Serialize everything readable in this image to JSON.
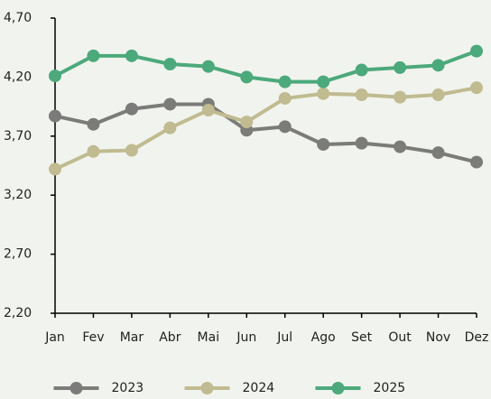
{
  "chart_data": {
    "type": "line",
    "categories": [
      "Jan",
      "Fev",
      "Mar",
      "Abr",
      "Mai",
      "Jun",
      "Jul",
      "Ago",
      "Set",
      "Out",
      "Nov",
      "Dez"
    ],
    "series": [
      {
        "name": "2023",
        "color": "#7b7b79",
        "values": [
          3.87,
          3.8,
          3.93,
          3.97,
          3.97,
          3.75,
          3.78,
          3.63,
          3.64,
          3.61,
          3.56,
          3.48
        ]
      },
      {
        "name": "2024",
        "color": "#c0bb90",
        "values": [
          3.42,
          3.57,
          3.58,
          3.77,
          3.92,
          3.82,
          4.02,
          4.06,
          4.05,
          4.03,
          4.05,
          4.11
        ]
      },
      {
        "name": "2025",
        "color": "#4ca97c",
        "values": [
          4.21,
          4.38,
          4.38,
          4.31,
          4.29,
          4.2,
          4.16,
          4.16,
          4.26,
          4.28,
          4.3,
          4.42
        ]
      }
    ],
    "ylim": [
      2.2,
      4.7
    ],
    "yticks": [
      {
        "value": 2.2,
        "label": "2,20"
      },
      {
        "value": 2.7,
        "label": "2,70"
      },
      {
        "value": 3.2,
        "label": "3,20"
      },
      {
        "value": 3.7,
        "label": "3,70"
      },
      {
        "value": 4.2,
        "label": "4,20"
      },
      {
        "value": 4.7,
        "label": "4,70"
      }
    ],
    "grid": false,
    "legend": "bottom"
  }
}
